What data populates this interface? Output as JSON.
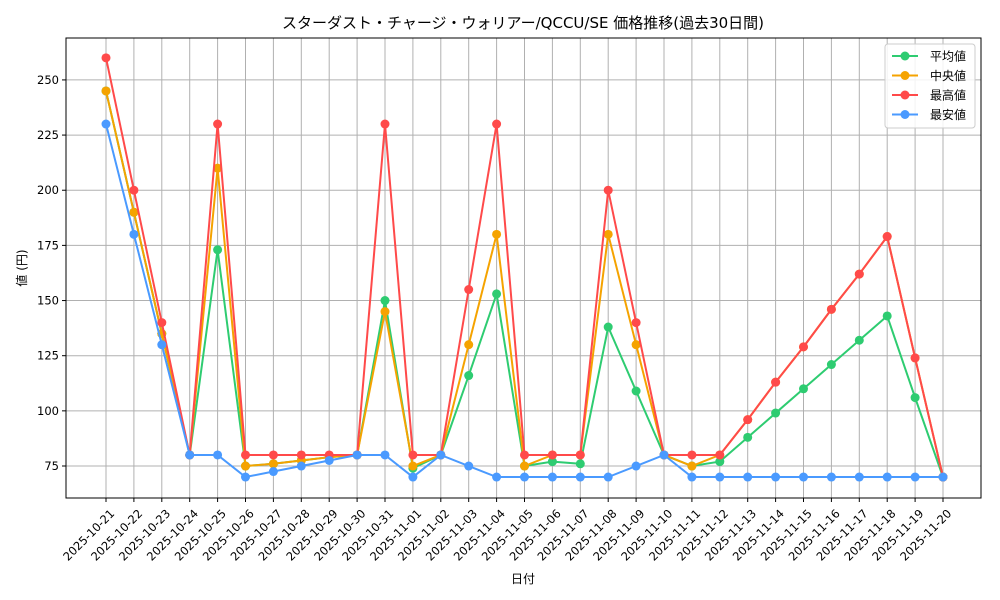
{
  "chart_data": {
    "type": "line",
    "title": "スターダスト・チャージ・ウォリアー/QCCU/SE 価格推移(過去30日間)",
    "xlabel": "日付",
    "ylabel": "値 (円)",
    "x": [
      "2025-10-21",
      "2025-10-22",
      "2025-10-23",
      "2025-10-24",
      "2025-10-25",
      "2025-10-26",
      "2025-10-27",
      "2025-10-28",
      "2025-10-29",
      "2025-10-30",
      "2025-10-31",
      "2025-11-01",
      "2025-11-02",
      "2025-11-03",
      "2025-11-04",
      "2025-11-05",
      "2025-11-06",
      "2025-11-07",
      "2025-11-08",
      "2025-11-09",
      "2025-11-10",
      "2025-11-11",
      "2025-11-12",
      "2025-11-13",
      "2025-11-14",
      "2025-11-15",
      "2025-11-16",
      "2025-11-17",
      "2025-11-18",
      "2025-11-19",
      "2025-11-20"
    ],
    "yticks": [
      75,
      100,
      125,
      150,
      175,
      200,
      225,
      250
    ],
    "ylim": [
      60.5,
      269
    ],
    "grid": true,
    "legend_position": "top-right",
    "series": [
      {
        "name": "平均値",
        "color": "#2ecc71",
        "values": [
          245,
          190,
          135,
          80,
          173,
          75,
          76,
          77.5,
          79,
          80,
          150,
          74,
          80,
          116,
          153,
          75,
          77,
          76,
          138,
          109,
          80,
          75,
          77,
          88,
          99,
          110,
          121,
          132,
          143,
          106,
          70
        ]
      },
      {
        "name": "中央値",
        "color": "#f5a300",
        "values": [
          245,
          190,
          135,
          80,
          210,
          75,
          76,
          77.5,
          79,
          80,
          145,
          75,
          80,
          130,
          180,
          75,
          80,
          80,
          180,
          130,
          80,
          75,
          80,
          96,
          113,
          129,
          146,
          162,
          179,
          124,
          70
        ]
      },
      {
        "name": "最高値",
        "color": "#ff4a4a",
        "values": [
          260,
          200,
          140,
          80,
          230,
          80,
          80,
          80,
          80,
          80,
          230,
          80,
          80,
          155,
          230,
          80,
          80,
          80,
          200,
          140,
          80,
          80,
          80,
          96,
          113,
          129,
          146,
          162,
          179,
          124,
          70
        ]
      },
      {
        "name": "最安値",
        "color": "#4a9aff",
        "values": [
          230,
          180,
          130,
          80,
          80,
          70,
          72.5,
          75,
          77.5,
          80,
          80,
          70,
          80,
          75,
          70,
          70,
          70,
          70,
          70,
          75,
          80,
          70,
          70,
          70,
          70,
          70,
          70,
          70,
          70,
          70,
          70
        ]
      }
    ]
  }
}
